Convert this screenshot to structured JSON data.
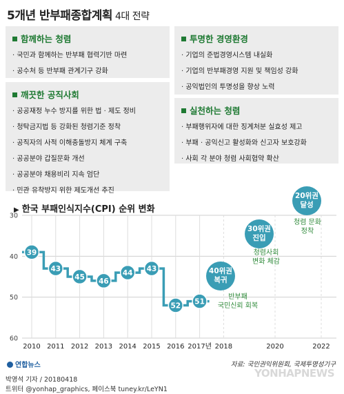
{
  "title": {
    "main": "5개년 반부패종합계획",
    "sub": "4대 전략"
  },
  "panels": [
    {
      "heading": "함께하는 청렴",
      "items": [
        "국민과 함께하는 반부패 협력기반 마련",
        "공수처 등 반부패 관계기구 강화"
      ]
    },
    {
      "heading": "깨끗한 공직사회",
      "items": [
        "공공재정 누수 방지를 위한 법 · 제도 정비",
        "청탁금지법 등 강화된 청렴기준 정착",
        "공직자의 사적 이해충돌방지 체계 구축",
        "공공분야 갑질문화 개선",
        "공공분야 채용비리 지속 엄단",
        "민관 유착방지 위한 제도개선 추진"
      ]
    },
    {
      "heading": "투명한 경영환경",
      "items": [
        "기업의 준법경영시스템 내실화",
        "기업의 반부패경영 지원 및 책임성 강화",
        "공익법인의 투명성을 향상 노력"
      ]
    },
    {
      "heading": "실천하는 청렴",
      "items": [
        "부패행위자에 대한 징계처분 실효성 제고",
        "부패 · 공익신고 활성화와 신고자 보호강화",
        "사회 각 분야 청렴 사회협약 확산"
      ]
    }
  ],
  "chart_title": "한국 부패인식지수(CPI) 순위 변화",
  "chart_data": {
    "type": "line",
    "title": "한국 부패인식지수(CPI) 순위 변화",
    "x": [
      "2010",
      "2011",
      "2012",
      "2013",
      "2014",
      "2015",
      "2016",
      "2017년"
    ],
    "values": [
      39,
      43,
      45,
      46,
      44,
      43,
      52,
      51
    ],
    "future_ticks": [
      "2018",
      "2020",
      "2022"
    ],
    "y_ticks": [
      30,
      40,
      50,
      60
    ],
    "ylim": [
      30,
      60
    ],
    "y_inverted": true,
    "grid": true,
    "colors": {
      "line": "#3a9db5",
      "point_label_bg": "#3a9db5",
      "grid": "#cfcfcf"
    }
  },
  "milestones": [
    {
      "line1": "40위권",
      "line2": "복귀",
      "goal": [
        "반부패",
        "국민신뢰 회복"
      ]
    },
    {
      "line1": "30위권",
      "line2": "진입",
      "goal": [
        "청렴사회",
        "변화 체감"
      ]
    },
    {
      "line1": "20위권",
      "line2": "달성",
      "goal": [
        "청렴 문화",
        "정착"
      ]
    }
  ],
  "source": "자료: 국민권익위원회, 국제투명성기구",
  "logo": "연합뉴스",
  "credit_line1": "박영석 기자 / 20180418",
  "credit_line2": "트위터 @yonhap_graphics, 페이스북 tuney.kr/LeYN1",
  "watermark": "YONHAPNEWS"
}
